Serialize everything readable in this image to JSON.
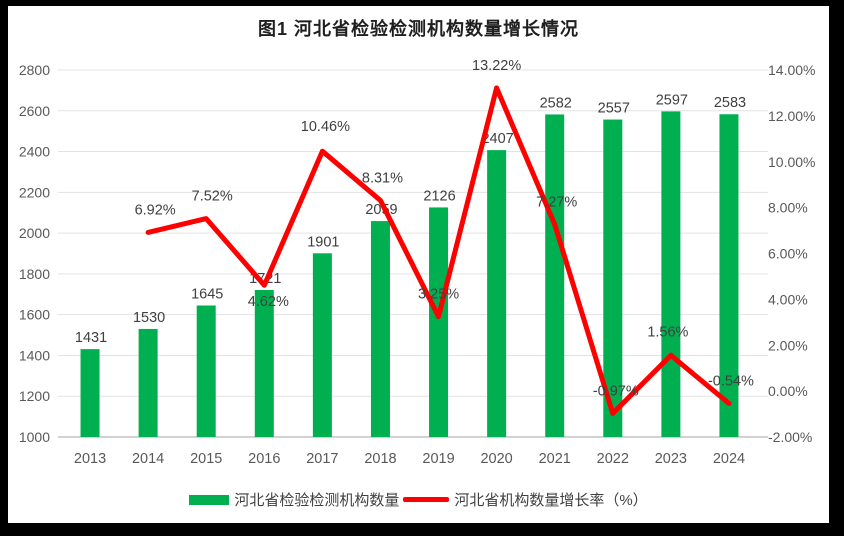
{
  "chart_data": {
    "type": "combo-bar-line",
    "title": "图1 河北省检验检测机构数量增长情况",
    "categories": [
      "2013",
      "2014",
      "2015",
      "2016",
      "2017",
      "2018",
      "2019",
      "2020",
      "2021",
      "2022",
      "2023",
      "2024"
    ],
    "series": [
      {
        "name": "河北省检验检测机构数量",
        "type": "bar",
        "axis": "left",
        "color": "#00B050",
        "values": [
          1431,
          1530,
          1645,
          1721,
          1901,
          2059,
          2126,
          2407,
          2582,
          2557,
          2597,
          2583
        ],
        "data_labels": [
          "1431",
          "1530",
          "1645",
          "1721",
          "1901",
          "2059",
          "2126",
          "2407",
          "2582",
          "2557",
          "2597",
          "2583"
        ]
      },
      {
        "name": "河北省机构数量增长率（%）",
        "type": "line",
        "axis": "right",
        "color": "#FF0000",
        "values": [
          null,
          6.92,
          7.52,
          4.62,
          10.46,
          8.31,
          3.25,
          13.22,
          7.27,
          -0.97,
          1.56,
          -0.54
        ],
        "data_labels": [
          null,
          "6.92%",
          "7.52%",
          "4.62%",
          "10.46%",
          "8.31%",
          "3.25%",
          "13.22%",
          "7.27%",
          "-0.97%",
          "1.56%",
          "-0.54%"
        ]
      }
    ],
    "left_axis": {
      "min": 1000,
      "max": 2800,
      "step": 200,
      "tick_labels": [
        "2800",
        "2600",
        "2400",
        "2200",
        "2000",
        "1800",
        "1600",
        "1400",
        "1200",
        "1000"
      ]
    },
    "right_axis": {
      "min": -2,
      "max": 14,
      "step": 2,
      "tick_labels": [
        "14.00%",
        "12.00%",
        "10.00%",
        "8.00%",
        "6.00%",
        "4.00%",
        "2.00%",
        "0.00%",
        "-2.00%"
      ]
    },
    "legend": [
      "河北省检验检测机构数量",
      "河北省机构数量增长率（%）"
    ],
    "legend_position": "bottom",
    "grid": true
  },
  "style_colors": {
    "bar_green": "#00B050",
    "line_red": "#FF0000",
    "gridline": "#E3E3E3",
    "axis_line": "#D2D2D2",
    "tick_text": "#595959",
    "data_label_text": "#404040",
    "frame": "#000000",
    "background": "#FFFFFF"
  }
}
